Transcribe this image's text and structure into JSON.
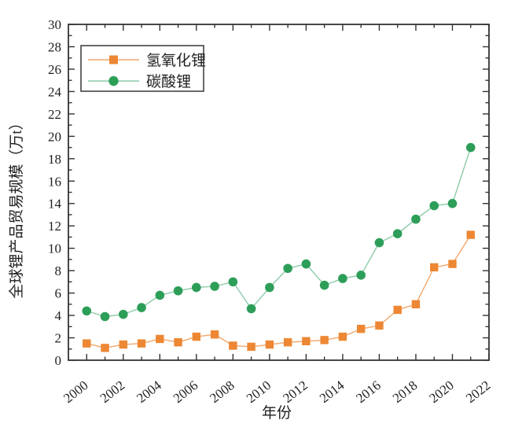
{
  "chart_data": {
    "type": "line",
    "title": "",
    "xlabel": "年份",
    "ylabel": "全球锂产品贸易规模（万t）",
    "xlim": [
      1999,
      2022
    ],
    "ylim": [
      0,
      30
    ],
    "grid": false,
    "legend_position": "top-left-inside",
    "x_major_tick_labels": [
      2000,
      2002,
      2004,
      2006,
      2008,
      2010,
      2012,
      2014,
      2016,
      2018,
      2020,
      2022
    ],
    "x_minor_ticks": [
      2001,
      2003,
      2005,
      2007,
      2009,
      2011,
      2013,
      2015,
      2017,
      2019,
      2021
    ],
    "y_major_tick_labels": [
      0,
      2,
      4,
      6,
      8,
      10,
      12,
      14,
      16,
      18,
      20,
      22,
      24,
      26,
      28,
      30
    ],
    "y_minor_step": 1,
    "x": [
      2000,
      2001,
      2002,
      2003,
      2004,
      2005,
      2006,
      2007,
      2008,
      2009,
      2010,
      2011,
      2012,
      2013,
      2014,
      2015,
      2016,
      2017,
      2018,
      2019,
      2020,
      2021
    ],
    "series": [
      {
        "name": "氢氧化锂",
        "marker": "square",
        "marker_color": "#ED8733",
        "line_color": "#F2A76B",
        "values": [
          1.5,
          1.1,
          1.4,
          1.5,
          1.9,
          1.6,
          2.1,
          2.3,
          1.3,
          1.2,
          1.4,
          1.6,
          1.7,
          1.8,
          2.1,
          2.8,
          3.1,
          4.5,
          5.0,
          8.3,
          8.6,
          11.2
        ]
      },
      {
        "name": "碳酸锂",
        "marker": "circle",
        "marker_color": "#2D9E58",
        "line_color": "#8CCBAA",
        "values": [
          4.4,
          3.9,
          4.1,
          4.7,
          5.8,
          6.2,
          6.5,
          6.6,
          7.0,
          4.6,
          6.5,
          8.2,
          8.6,
          6.7,
          7.3,
          7.6,
          10.5,
          11.3,
          12.6,
          13.8,
          14.0,
          19.0
        ]
      }
    ],
    "axis_color": "#333333"
  }
}
